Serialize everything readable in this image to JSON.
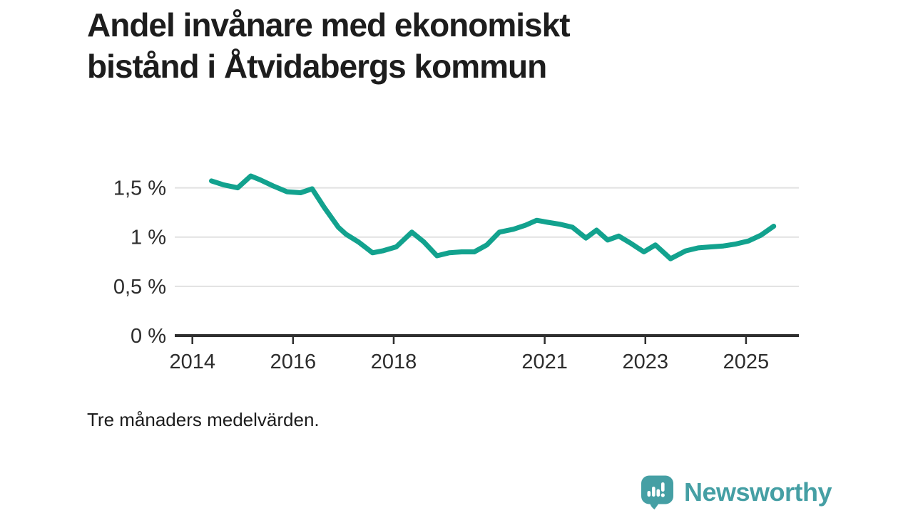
{
  "title": {
    "line1": "Andel invånare med ekonomiskt",
    "line2": "bistånd i Åtvidabergs kommun"
  },
  "footnote": "Tre månaders medelvärden.",
  "branding": {
    "wordmark": "Newsworthy",
    "icon": "bar-chart-speech-bubble-icon"
  },
  "colors": {
    "line": "#12a28e",
    "brand": "#459fa4",
    "title_text": "#1d1d1d",
    "axis": "#2f2f2f",
    "axis_text": "#2d2d2d",
    "gridline": "#e1e1e1",
    "background": "#ffffff",
    "icon_glyph": "#ffffff"
  },
  "chart_data": {
    "type": "line",
    "title": "Andel invånare med ekonomiskt bistånd i Åtvidabergs kommun",
    "note": "Tre månaders medelvärden.",
    "xlabel": "",
    "ylabel": "",
    "unit": "%",
    "grid": "horizontal-only",
    "legend": "none",
    "xlim": [
      2013.65,
      2026.05
    ],
    "ylim": [
      0,
      1.75
    ],
    "x_ticks": [
      {
        "v": 2014,
        "label": "2014"
      },
      {
        "v": 2016,
        "label": "2016"
      },
      {
        "v": 2018,
        "label": "2018"
      },
      {
        "v": 2021,
        "label": "2021"
      },
      {
        "v": 2023,
        "label": "2023"
      },
      {
        "v": 2025,
        "label": "2025"
      }
    ],
    "y_ticks": [
      {
        "v": 0,
        "label": "0 %"
      },
      {
        "v": 0.5,
        "label": "0,5 %"
      },
      {
        "v": 1,
        "label": "1 %"
      },
      {
        "v": 1.5,
        "label": "1,5 %"
      }
    ],
    "series": [
      {
        "name": "Andel invånare med ekonomiskt bistånd",
        "unit": "%",
        "points": [
          [
            2014.38,
            1.57
          ],
          [
            2014.62,
            1.53
          ],
          [
            2014.9,
            1.5
          ],
          [
            2015.16,
            1.62
          ],
          [
            2015.35,
            1.58
          ],
          [
            2015.6,
            1.52
          ],
          [
            2015.88,
            1.46
          ],
          [
            2016.15,
            1.45
          ],
          [
            2016.38,
            1.49
          ],
          [
            2016.62,
            1.3
          ],
          [
            2016.9,
            1.1
          ],
          [
            2017.05,
            1.03
          ],
          [
            2017.3,
            0.95
          ],
          [
            2017.58,
            0.84
          ],
          [
            2017.78,
            0.86
          ],
          [
            2018.05,
            0.9
          ],
          [
            2018.36,
            1.05
          ],
          [
            2018.6,
            0.95
          ],
          [
            2018.86,
            0.81
          ],
          [
            2019.1,
            0.84
          ],
          [
            2019.35,
            0.85
          ],
          [
            2019.6,
            0.85
          ],
          [
            2019.85,
            0.92
          ],
          [
            2020.1,
            1.05
          ],
          [
            2020.38,
            1.08
          ],
          [
            2020.62,
            1.12
          ],
          [
            2020.84,
            1.17
          ],
          [
            2021.06,
            1.15
          ],
          [
            2021.3,
            1.13
          ],
          [
            2021.55,
            1.1
          ],
          [
            2021.82,
            0.99
          ],
          [
            2022.03,
            1.07
          ],
          [
            2022.25,
            0.97
          ],
          [
            2022.47,
            1.01
          ],
          [
            2022.7,
            0.94
          ],
          [
            2022.97,
            0.85
          ],
          [
            2023.2,
            0.92
          ],
          [
            2023.5,
            0.78
          ],
          [
            2023.8,
            0.86
          ],
          [
            2024.05,
            0.89
          ],
          [
            2024.3,
            0.9
          ],
          [
            2024.55,
            0.91
          ],
          [
            2024.8,
            0.93
          ],
          [
            2025.05,
            0.96
          ],
          [
            2025.3,
            1.02
          ],
          [
            2025.55,
            1.11
          ]
        ]
      }
    ]
  }
}
